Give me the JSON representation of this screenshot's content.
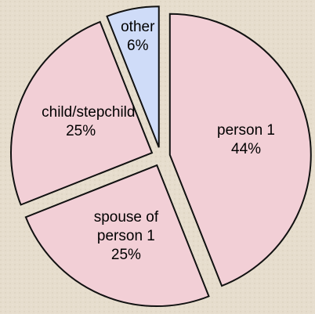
{
  "chart_data": {
    "type": "pie",
    "categories": [
      "person 1",
      "spouse of person 1",
      "child/stepchild",
      "other"
    ],
    "values": [
      44,
      25,
      25,
      6
    ],
    "value_labels": [
      "44%",
      "25%",
      "25%",
      "6%"
    ],
    "colors": [
      "#f2cfd6",
      "#f2cfd6",
      "#f2cfd6",
      "#cfdcf8"
    ]
  }
}
